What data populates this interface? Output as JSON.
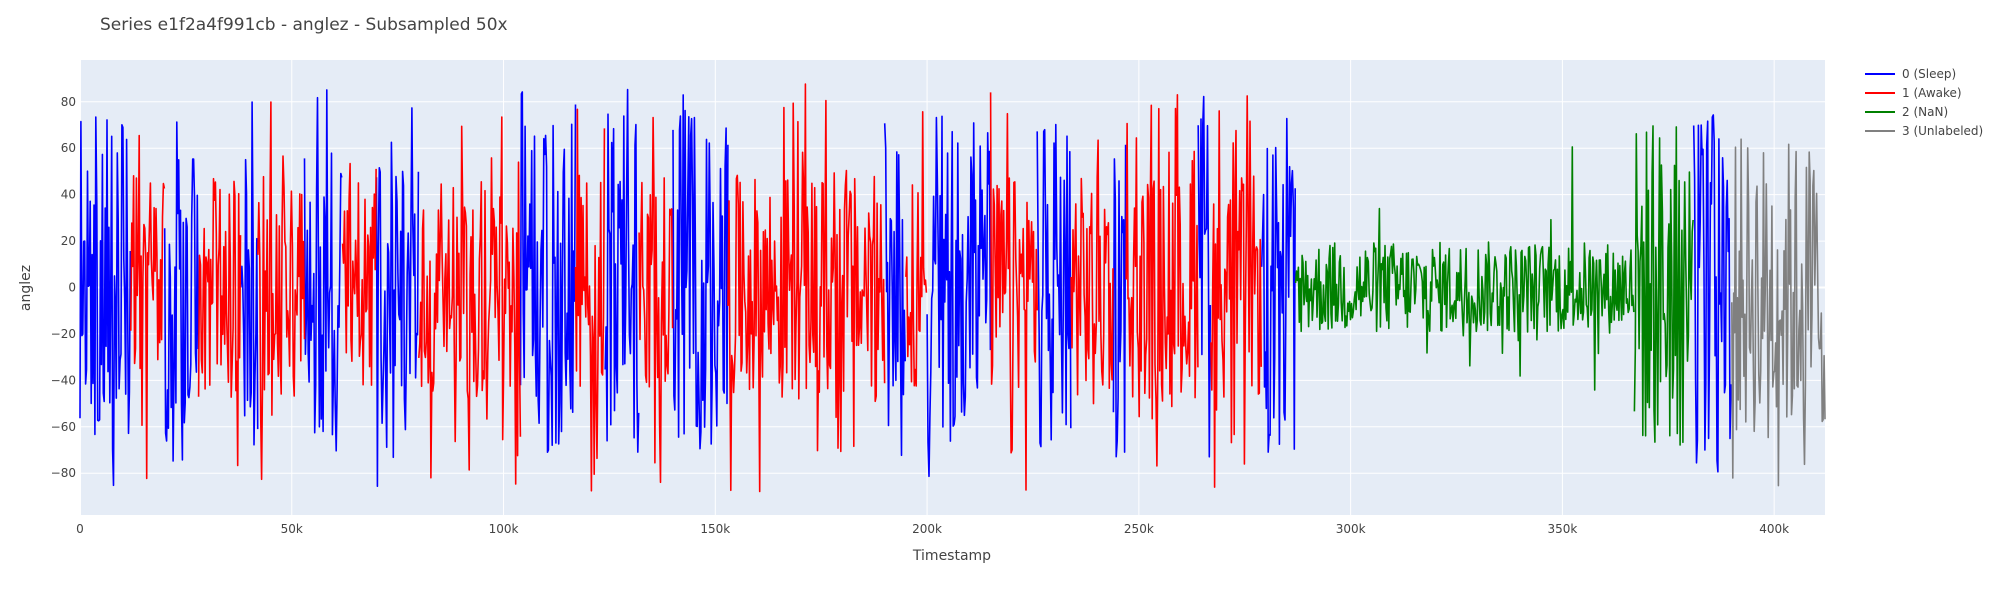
{
  "chart_data": {
    "type": "line",
    "title": "Series e1f2a4f991cb - anglez - Subsampled 50x",
    "xlabel": "Timestamp",
    "ylabel": "anglez",
    "xlim": [
      0,
      412000
    ],
    "ylim": [
      -98,
      98
    ],
    "x_ticks": [
      0,
      50000,
      100000,
      150000,
      200000,
      250000,
      300000,
      350000,
      400000
    ],
    "x_tick_labels": [
      "0",
      "50k",
      "100k",
      "150k",
      "200k",
      "250k",
      "300k",
      "350k",
      "400k"
    ],
    "y_ticks": [
      -80,
      -60,
      -40,
      -20,
      0,
      20,
      40,
      60,
      80
    ],
    "y_tick_labels": [
      "−80",
      "−60",
      "−40",
      "−20",
      "0",
      "20",
      "40",
      "60",
      "80"
    ],
    "grid": true,
    "legend_position": "right",
    "colors": {
      "plot_bg": "#E5ECF6",
      "grid": "#ffffff"
    },
    "series": [
      {
        "name": "0 (Sleep)",
        "color": "#0000FF",
        "segments": [
          [
            0,
            12000
          ],
          [
            20000,
            28000
          ],
          [
            38000,
            42000
          ],
          [
            53000,
            62000
          ],
          [
            70000,
            80000
          ],
          [
            104000,
            117000
          ],
          [
            124000,
            132000
          ],
          [
            140000,
            153000
          ],
          [
            190000,
            195000
          ],
          [
            200000,
            215000
          ],
          [
            226000,
            234000
          ],
          [
            244000,
            247000
          ],
          [
            264000,
            267000
          ],
          [
            279000,
            287000
          ],
          [
            381000,
            390000
          ]
        ],
        "y_range": [
          -88,
          88
        ]
      },
      {
        "name": "1 (Awake)",
        "color": "#FF0000",
        "segments": [
          [
            12000,
            20000
          ],
          [
            28000,
            38000
          ],
          [
            42000,
            53000
          ],
          [
            62000,
            70000
          ],
          [
            80000,
            104000
          ],
          [
            117000,
            124000
          ],
          [
            132000,
            140000
          ],
          [
            153000,
            190000
          ],
          [
            195000,
            200000
          ],
          [
            215000,
            226000
          ],
          [
            234000,
            244000
          ],
          [
            247000,
            264000
          ],
          [
            267000,
            279000
          ]
        ],
        "y_range": [
          -88,
          88
        ]
      },
      {
        "name": "2 (NaN)",
        "color": "#008000",
        "segments": [
          [
            287000,
            367000
          ],
          [
            367000,
            381000
          ]
        ],
        "y_range": [
          -82,
          86
        ]
      },
      {
        "name": "3 (Unlabeled)",
        "color": "#808080",
        "segments": [
          [
            390000,
            412000
          ]
        ],
        "y_range": [
          -88,
          65
        ]
      }
    ]
  }
}
